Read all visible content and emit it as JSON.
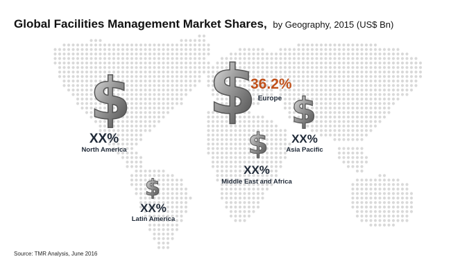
{
  "title": {
    "main": "Global Facilities Management Market Shares,",
    "sub": "by Geography, 2015 (US$ Bn)"
  },
  "source": "Source: TMR Analysis, June 2016",
  "regions": [
    {
      "key": "north_america",
      "name": "North America",
      "share": "XX%",
      "icon": "dollar-sign-icon",
      "highlight": false
    },
    {
      "key": "europe",
      "name": "Europe",
      "share": "36.2%",
      "icon": "dollar-sign-icon",
      "highlight": true
    },
    {
      "key": "asia_pacific",
      "name": "Asia Pacific",
      "share": "XX%",
      "icon": "dollar-sign-icon",
      "highlight": false
    },
    {
      "key": "middle_east_africa",
      "name": "Middle East and Africa",
      "share": "XX%",
      "icon": "dollar-sign-icon",
      "highlight": false
    },
    {
      "key": "latin_america",
      "name": "Latin America",
      "share": "XX%",
      "icon": "dollar-sign-icon",
      "highlight": false
    }
  ],
  "colors": {
    "highlight": "#c0501a",
    "text": "#1f2937",
    "dot": "#d9d9d9",
    "icon_light": "#d8d8d8",
    "icon_dark": "#4a4a4a"
  }
}
